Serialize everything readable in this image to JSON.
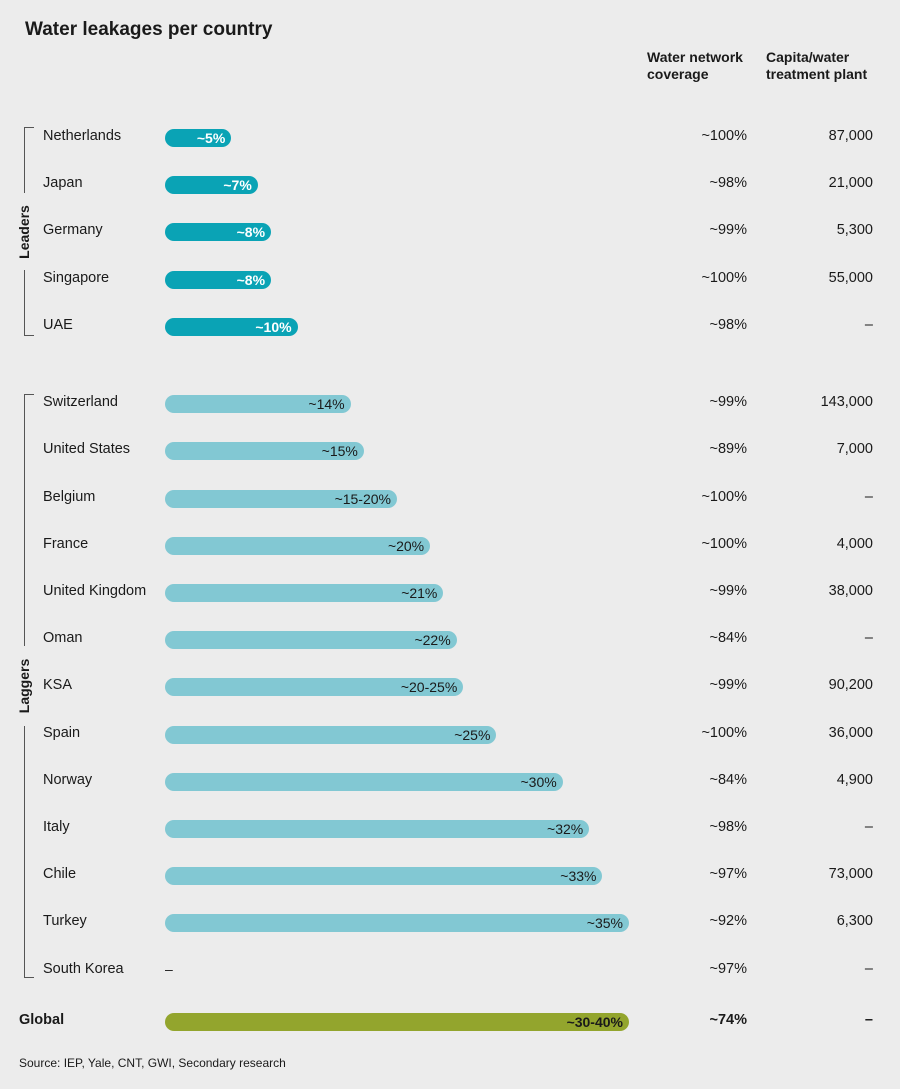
{
  "title": "Water leakages per country",
  "col_headers": {
    "coverage": [
      "Water network",
      "coverage"
    ],
    "capita": [
      "Capita/water",
      "treatment plant"
    ]
  },
  "groups": {
    "leaders": "Leaders",
    "laggers": "Laggers"
  },
  "colors": {
    "leader_bar": "#0aa3b5",
    "lagger_bar": "#82c8d3",
    "global_bar": "#93a52d",
    "background": "#ececec"
  },
  "chart_data": {
    "type": "bar",
    "orientation": "horizontal",
    "title": "Water leakages per country",
    "value_unit": "%",
    "xlim": [
      0,
      35
    ],
    "rows": [
      {
        "country": "Netherlands",
        "group": "leaders",
        "leakage": 5,
        "label": "~5%",
        "coverage": "~100%",
        "capita": "87,000"
      },
      {
        "country": "Japan",
        "group": "leaders",
        "leakage": 7,
        "label": "~7%",
        "coverage": "~98%",
        "capita": "21,000"
      },
      {
        "country": "Germany",
        "group": "leaders",
        "leakage": 8,
        "label": "~8%",
        "coverage": "~99%",
        "capita": "5,300"
      },
      {
        "country": "Singapore",
        "group": "leaders",
        "leakage": 8,
        "label": "~8%",
        "coverage": "~100%",
        "capita": "55,000"
      },
      {
        "country": "UAE",
        "group": "leaders",
        "leakage": 10,
        "label": "~10%",
        "coverage": "~98%",
        "capita": "–"
      },
      {
        "country": "Switzerland",
        "group": "laggers",
        "leakage": 14,
        "label": "~14%",
        "coverage": "~99%",
        "capita": "143,000"
      },
      {
        "country": "United States",
        "group": "laggers",
        "leakage": 15,
        "label": "~15%",
        "coverage": "~89%",
        "capita": "7,000"
      },
      {
        "country": "Belgium",
        "group": "laggers",
        "leakage": 17.5,
        "label": "~15-20%",
        "coverage": "~100%",
        "capita": "–"
      },
      {
        "country": "France",
        "group": "laggers",
        "leakage": 20,
        "label": "~20%",
        "coverage": "~100%",
        "capita": "4,000"
      },
      {
        "country": "United Kingdom",
        "group": "laggers",
        "leakage": 21,
        "label": "~21%",
        "coverage": "~99%",
        "capita": "38,000"
      },
      {
        "country": "Oman",
        "group": "laggers",
        "leakage": 22,
        "label": "~22%",
        "coverage": "~84%",
        "capita": "–"
      },
      {
        "country": "KSA",
        "group": "laggers",
        "leakage": 22.5,
        "label": "~20-25%",
        "coverage": "~99%",
        "capita": "90,200"
      },
      {
        "country": "Spain",
        "group": "laggers",
        "leakage": 25,
        "label": "~25%",
        "coverage": "~100%",
        "capita": "36,000"
      },
      {
        "country": "Norway",
        "group": "laggers",
        "leakage": 30,
        "label": "~30%",
        "coverage": "~84%",
        "capita": "4,900"
      },
      {
        "country": "Italy",
        "group": "laggers",
        "leakage": 32,
        "label": "~32%",
        "coverage": "~98%",
        "capita": "–"
      },
      {
        "country": "Chile",
        "group": "laggers",
        "leakage": 33,
        "label": "~33%",
        "coverage": "~97%",
        "capita": "73,000"
      },
      {
        "country": "Turkey",
        "group": "laggers",
        "leakage": 35,
        "label": "~35%",
        "coverage": "~92%",
        "capita": "6,300"
      },
      {
        "country": "South Korea",
        "group": "laggers",
        "leakage": null,
        "label": "–",
        "coverage": "~97%",
        "capita": "–"
      }
    ],
    "global": {
      "country": "Global",
      "leakage": 35,
      "label": "~30-40%",
      "coverage": "~74%",
      "capita": "–"
    }
  },
  "source": "Source: IEP, Yale, CNT, GWI, Secondary research"
}
